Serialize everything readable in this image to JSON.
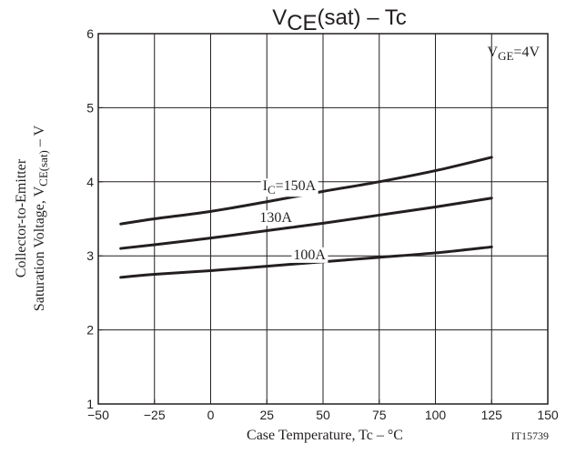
{
  "chart_data": {
    "type": "line",
    "title": {
      "main": "V",
      "sub": "CE",
      "rest": "(sat)  –  Tc"
    },
    "xlabel": "Case Temperature, Tc  –  °C",
    "ylabel": {
      "line1": "Collector-to-Emitter",
      "line2_main": "Saturation Voltage, V",
      "line2_sub": "CE(sat)",
      "line2_rest": "  –  V"
    },
    "annotation": {
      "main": "V",
      "sub": "GE",
      "rest": "=4V"
    },
    "figure_id": "IT15739",
    "xlim": [
      -50,
      150
    ],
    "ylim": [
      1,
      6
    ],
    "xticks": [
      "-50",
      "-25",
      "0",
      "25",
      "50",
      "75",
      "100",
      "125",
      "150"
    ],
    "yticks": [
      "1",
      "2",
      "3",
      "4",
      "5",
      "6"
    ],
    "grid": true,
    "x": [
      -40,
      -25,
      0,
      25,
      50,
      75,
      100,
      125
    ],
    "series": [
      {
        "name": "I_C=150A",
        "label": {
          "main": "I",
          "sub": "C",
          "rest": "=150A"
        },
        "values": [
          3.43,
          3.5,
          3.6,
          3.73,
          3.87,
          4.0,
          4.15,
          4.33
        ]
      },
      {
        "name": "130A",
        "label": {
          "main": "130A"
        },
        "values": [
          3.1,
          3.15,
          3.24,
          3.34,
          3.44,
          3.55,
          3.66,
          3.78
        ]
      },
      {
        "name": "100A",
        "label": {
          "main": "100A"
        },
        "values": [
          2.71,
          2.75,
          2.8,
          2.86,
          2.92,
          2.98,
          3.04,
          3.12
        ]
      }
    ],
    "colors": {
      "line": "#231f20",
      "grid": "#231f20",
      "background": "#ffffff"
    }
  }
}
